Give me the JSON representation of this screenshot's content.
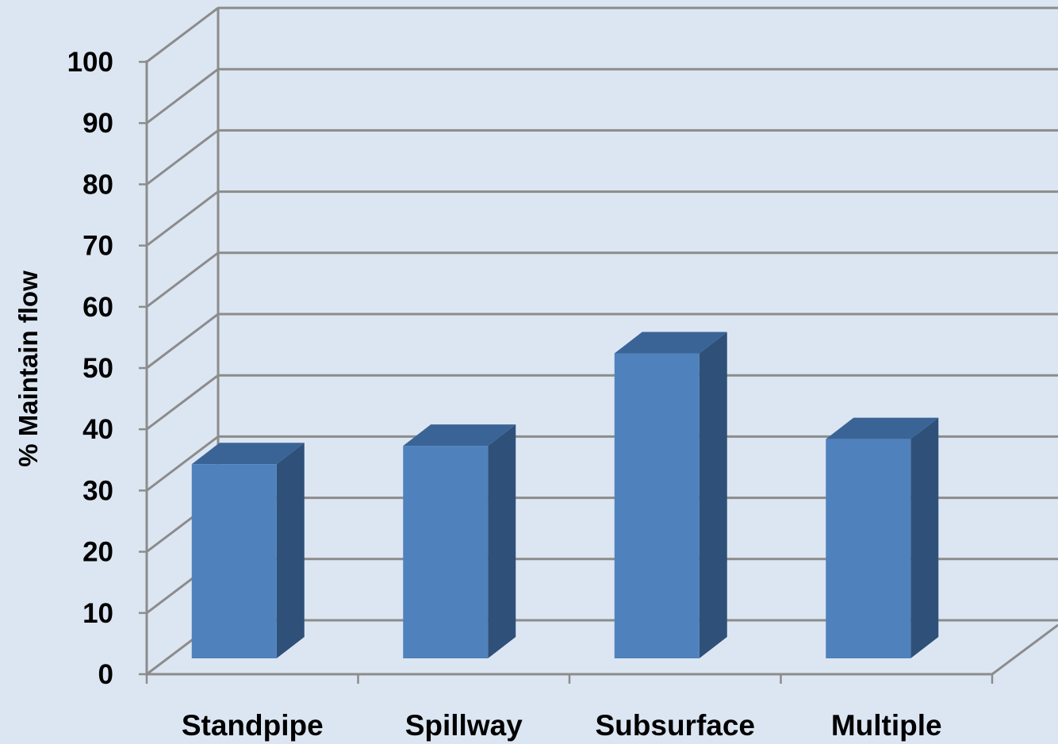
{
  "chart_data": {
    "type": "bar",
    "style": "3d-column",
    "title": "",
    "xlabel": "",
    "ylabel": "% Maintain flow",
    "categories": [
      "Standpipe",
      "Spillway",
      "Subsurface",
      "Multiple"
    ],
    "series": [
      {
        "values": [
          31.7,
          34.7,
          49.8,
          35.8
        ]
      }
    ],
    "ylim": [
      0,
      100
    ],
    "yticks": [
      "0",
      "10",
      "20",
      "30",
      "40",
      "50",
      "60",
      "70",
      "80",
      "90",
      "100"
    ],
    "grid": true,
    "legend": "none",
    "colors": {
      "background": "#dce6f2",
      "bar_front": "#4f81bd",
      "bar_top": "#3b6496",
      "bar_side": "#2f5078",
      "grid": "#8c8c8c"
    }
  }
}
